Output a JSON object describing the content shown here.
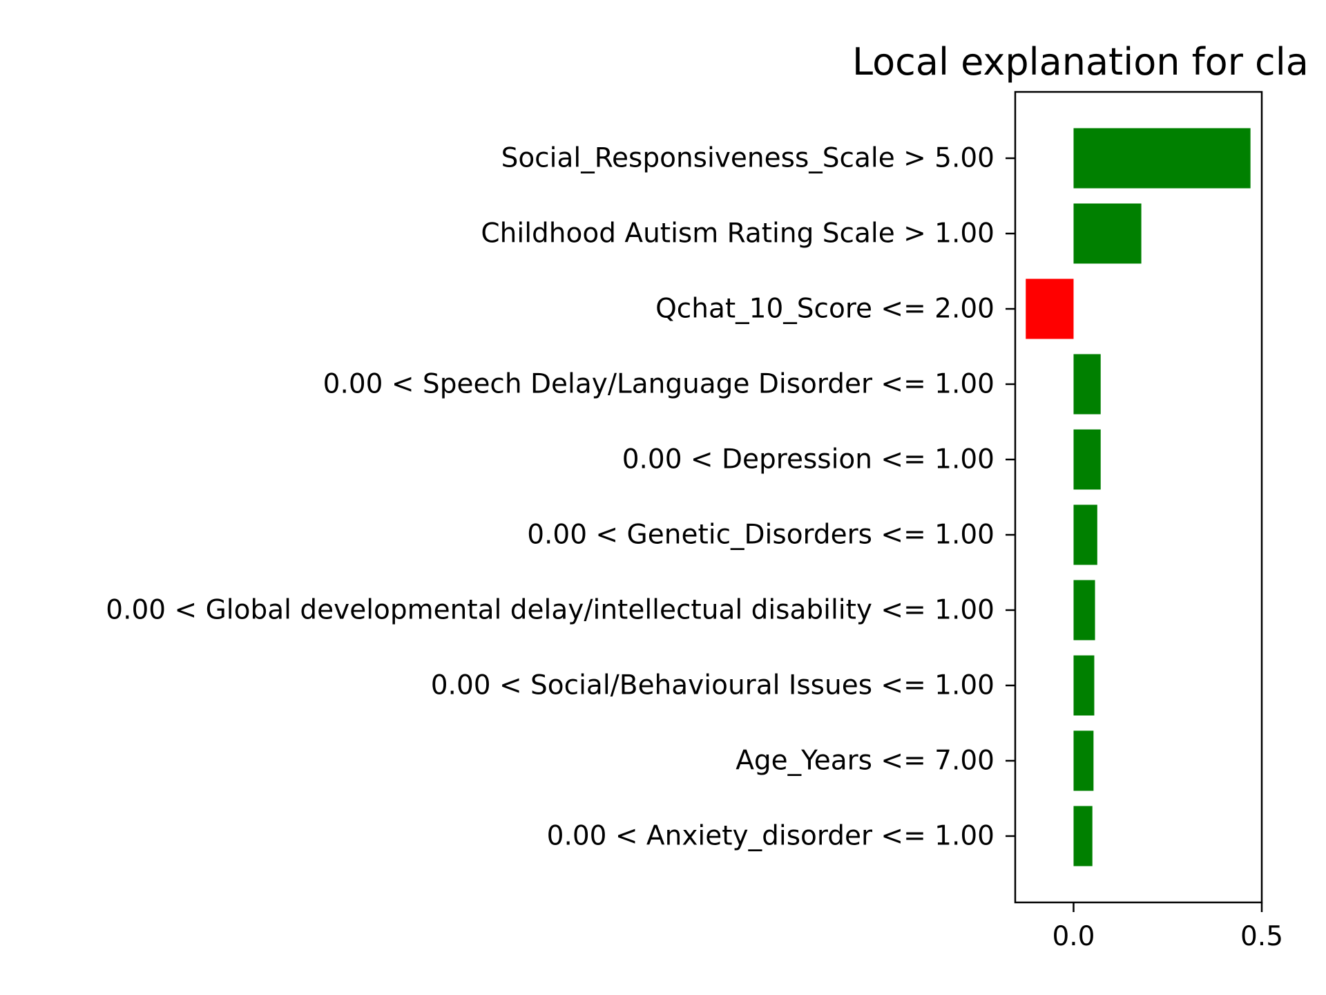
{
  "chart_data": {
    "type": "bar",
    "orientation": "horizontal",
    "title": "Local explanation for cla",
    "categories": [
      "Social_Responsiveness_Scale > 5.00",
      "Childhood Autism Rating Scale > 1.00",
      "Qchat_10_Score <= 2.00",
      "0.00 < Speech Delay/Language Disorder <= 1.00",
      "0.00 < Depression <= 1.00",
      "0.00 < Genetic_Disorders <= 1.00",
      "0.00 < Global developmental delay/intellectual disability <= 1.00",
      "0.00 < Social/Behavioural Issues <= 1.00",
      "Age_Years <= 7.00",
      "0.00 < Anxiety_disorder <= 1.00"
    ],
    "values": [
      0.47,
      0.18,
      -0.127,
      0.072,
      0.072,
      0.063,
      0.057,
      0.055,
      0.053,
      0.05
    ],
    "xlim": [
      -0.155,
      0.5
    ],
    "xticks": [
      0.0,
      0.5
    ],
    "xtick_labels": [
      "0.0",
      "0.5"
    ],
    "xlabel": "",
    "ylabel": "",
    "grid": false,
    "colors": {
      "positive": "#008000",
      "negative": "#ff0000"
    }
  }
}
